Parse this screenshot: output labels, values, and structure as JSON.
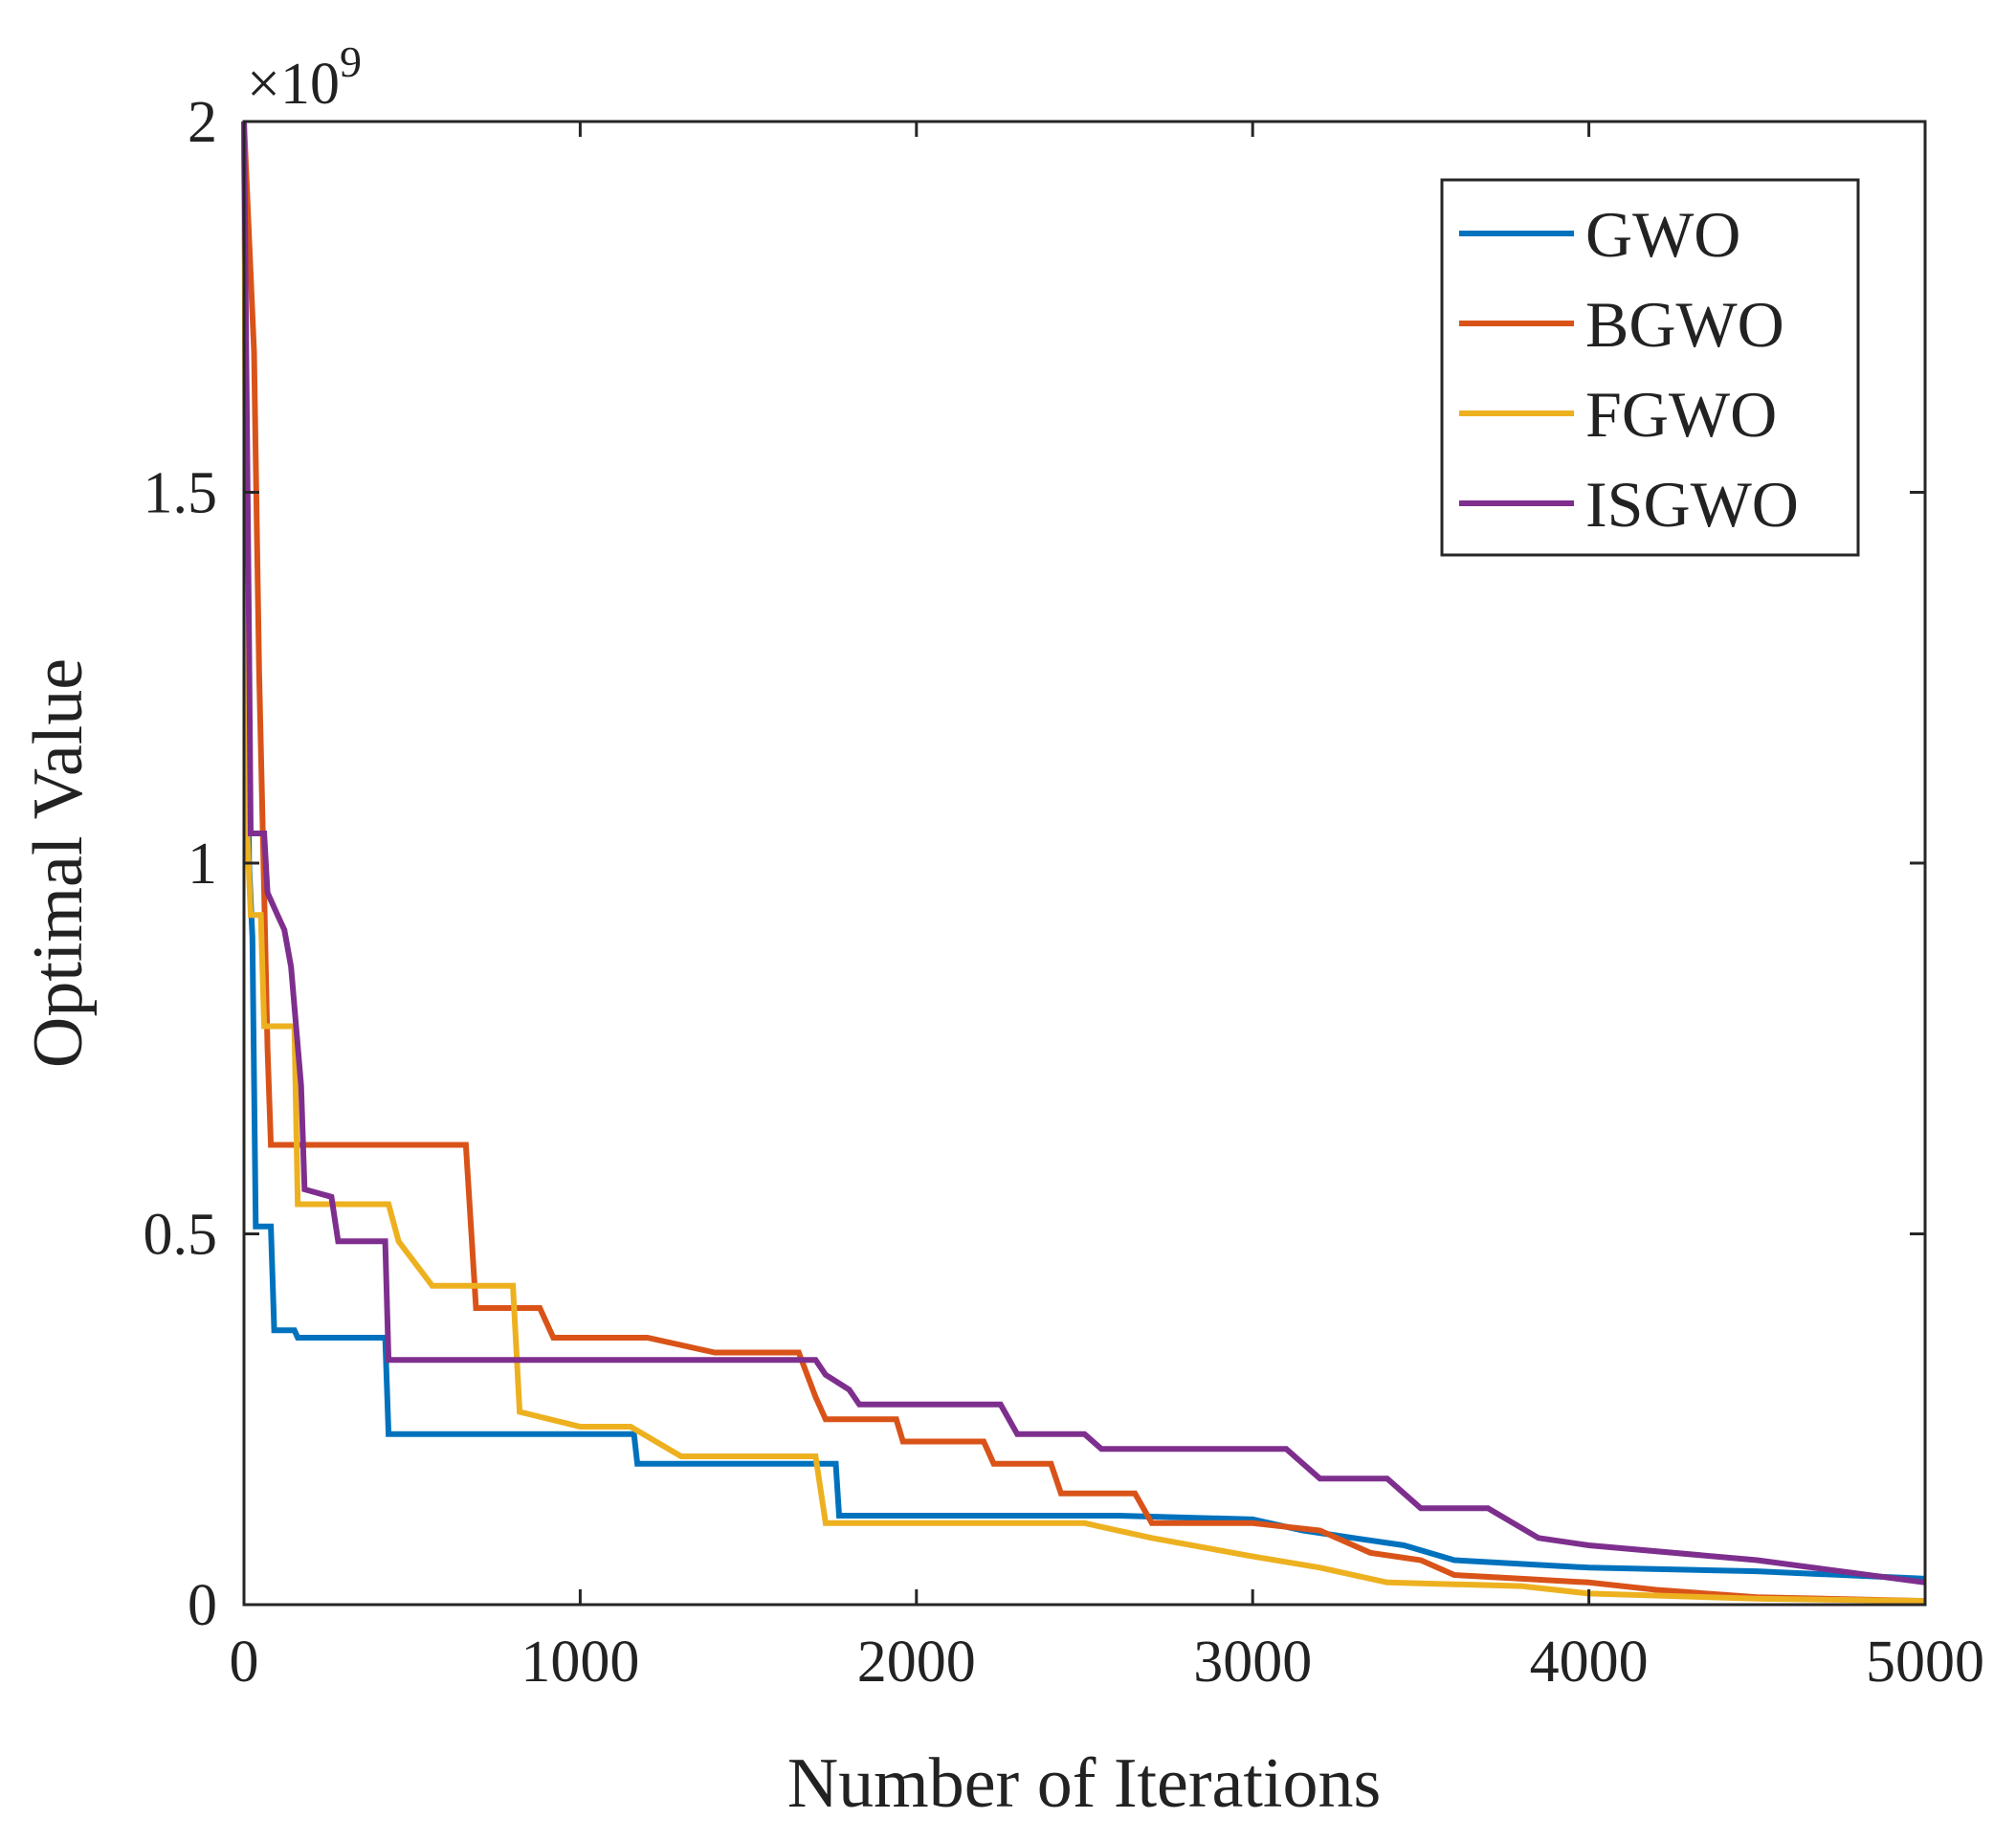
{
  "chart_data": {
    "type": "line",
    "title": "",
    "xlabel": "Number of Iterations",
    "ylabel": "Optimal Value",
    "y_multiplier": {
      "base": "×10",
      "exponent": "9"
    },
    "xlim": [
      0,
      5000
    ],
    "ylim": [
      0,
      2
    ],
    "xticks": [
      0,
      1000,
      2000,
      3000,
      4000,
      5000
    ],
    "yticks": [
      0,
      0.5,
      1,
      1.5,
      2
    ],
    "xtick_labels": [
      "0",
      "1000",
      "2000",
      "3000",
      "4000",
      "5000"
    ],
    "ytick_labels": [
      "0",
      "0.5",
      "1",
      "1.5",
      "2"
    ],
    "grid": false,
    "legend_position": "top-right",
    "series": [
      {
        "name": "GWO",
        "color": "#0072BD",
        "points": [
          [
            0,
            2.0
          ],
          [
            15,
            1.0
          ],
          [
            25,
            0.9
          ],
          [
            35,
            0.51
          ],
          [
            80,
            0.51
          ],
          [
            90,
            0.37
          ],
          [
            150,
            0.37
          ],
          [
            160,
            0.36
          ],
          [
            420,
            0.36
          ],
          [
            430,
            0.23
          ],
          [
            1160,
            0.23
          ],
          [
            1170,
            0.19
          ],
          [
            1760,
            0.19
          ],
          [
            1770,
            0.12
          ],
          [
            2600,
            0.12
          ],
          [
            3000,
            0.115
          ],
          [
            3150,
            0.1
          ],
          [
            3300,
            0.09
          ],
          [
            3450,
            0.08
          ],
          [
            3600,
            0.06
          ],
          [
            4000,
            0.05
          ],
          [
            4500,
            0.045
          ],
          [
            5000,
            0.035
          ]
        ]
      },
      {
        "name": "BGWO",
        "color": "#D95319",
        "points": [
          [
            0,
            2.0
          ],
          [
            30,
            1.69
          ],
          [
            45,
            1.26
          ],
          [
            60,
            0.96
          ],
          [
            70,
            0.75
          ],
          [
            80,
            0.62
          ],
          [
            660,
            0.62
          ],
          [
            690,
            0.4
          ],
          [
            880,
            0.4
          ],
          [
            920,
            0.36
          ],
          [
            1200,
            0.36
          ],
          [
            1400,
            0.34
          ],
          [
            1650,
            0.34
          ],
          [
            1700,
            0.28
          ],
          [
            1730,
            0.25
          ],
          [
            1940,
            0.25
          ],
          [
            1960,
            0.22
          ],
          [
            2200,
            0.22
          ],
          [
            2230,
            0.19
          ],
          [
            2400,
            0.19
          ],
          [
            2430,
            0.15
          ],
          [
            2650,
            0.15
          ],
          [
            2700,
            0.11
          ],
          [
            3000,
            0.11
          ],
          [
            3200,
            0.1
          ],
          [
            3350,
            0.07
          ],
          [
            3500,
            0.06
          ],
          [
            3600,
            0.04
          ],
          [
            3800,
            0.035
          ],
          [
            4000,
            0.03
          ],
          [
            4200,
            0.02
          ],
          [
            4500,
            0.01
          ],
          [
            5000,
            0.005
          ]
        ]
      },
      {
        "name": "FGWO",
        "color": "#EDB120",
        "points": [
          [
            0,
            2.0
          ],
          [
            10,
            1.04
          ],
          [
            20,
            0.93
          ],
          [
            50,
            0.93
          ],
          [
            60,
            0.78
          ],
          [
            150,
            0.78
          ],
          [
            160,
            0.54
          ],
          [
            430,
            0.54
          ],
          [
            460,
            0.49
          ],
          [
            560,
            0.43
          ],
          [
            800,
            0.43
          ],
          [
            820,
            0.26
          ],
          [
            1000,
            0.24
          ],
          [
            1150,
            0.24
          ],
          [
            1300,
            0.2
          ],
          [
            1700,
            0.2
          ],
          [
            1730,
            0.11
          ],
          [
            2500,
            0.11
          ],
          [
            2700,
            0.09
          ],
          [
            3000,
            0.065
          ],
          [
            3200,
            0.05
          ],
          [
            3400,
            0.03
          ],
          [
            3800,
            0.025
          ],
          [
            4000,
            0.015
          ],
          [
            4500,
            0.008
          ],
          [
            5000,
            0.005
          ]
        ]
      },
      {
        "name": "ISGWO",
        "color": "#7E2F8E",
        "points": [
          [
            0,
            2.0
          ],
          [
            15,
            1.3
          ],
          [
            20,
            1.04
          ],
          [
            60,
            1.04
          ],
          [
            70,
            0.96
          ],
          [
            100,
            0.93
          ],
          [
            120,
            0.91
          ],
          [
            140,
            0.86
          ],
          [
            170,
            0.7
          ],
          [
            180,
            0.56
          ],
          [
            260,
            0.55
          ],
          [
            280,
            0.49
          ],
          [
            420,
            0.49
          ],
          [
            430,
            0.33
          ],
          [
            1700,
            0.33
          ],
          [
            1730,
            0.31
          ],
          [
            1800,
            0.29
          ],
          [
            1830,
            0.27
          ],
          [
            2250,
            0.27
          ],
          [
            2300,
            0.23
          ],
          [
            2500,
            0.23
          ],
          [
            2550,
            0.21
          ],
          [
            3100,
            0.21
          ],
          [
            3200,
            0.17
          ],
          [
            3400,
            0.17
          ],
          [
            3500,
            0.13
          ],
          [
            3700,
            0.13
          ],
          [
            3850,
            0.09
          ],
          [
            4000,
            0.08
          ],
          [
            4500,
            0.06
          ],
          [
            5000,
            0.03
          ]
        ]
      }
    ]
  }
}
